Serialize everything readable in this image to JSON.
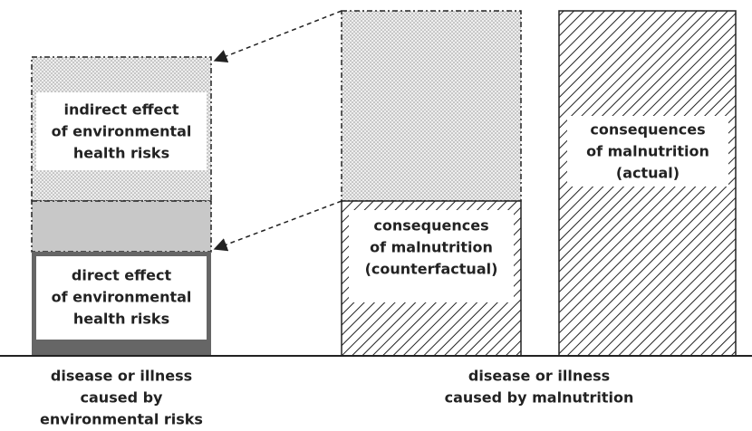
{
  "boxes": [
    {
      "lines": [
        "indirect effect",
        "of environmental",
        "health risks"
      ]
    },
    {
      "lines": [
        "direct effect",
        "of environmental",
        "health risks"
      ]
    },
    {
      "lines": [
        "consequences",
        "of malnutrition",
        "(counterfactual)"
      ]
    },
    {
      "lines": [
        "consequences",
        "of malnutrition",
        "(actual)"
      ]
    }
  ],
  "axis_labels": [
    {
      "lines": [
        "disease or illness",
        "caused by",
        "environmental risks"
      ]
    },
    {
      "lines": [
        "disease or illness",
        "caused by malnutrition"
      ]
    }
  ]
}
